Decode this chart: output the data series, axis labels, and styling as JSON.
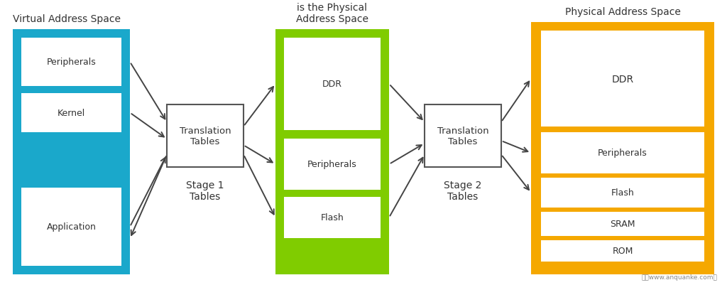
{
  "bg_color": "#ffffff",
  "title_virtual": "Virtual Address Space",
  "title_os": "What the OS think\nis the Physical\nAddress Space",
  "title_physical": "Physical Address Space",
  "stage1_label": "Stage 1\nTables",
  "stage2_label": "Stage 2\nTables",
  "trans_label": "Translation\nTables",
  "vas_color": "#1aa8cb",
  "os_color": "#80cc00",
  "phys_color": "#f5a800",
  "trans_box_edge": "#555555",
  "arrow_color": "#444444",
  "text_color": "#333333"
}
